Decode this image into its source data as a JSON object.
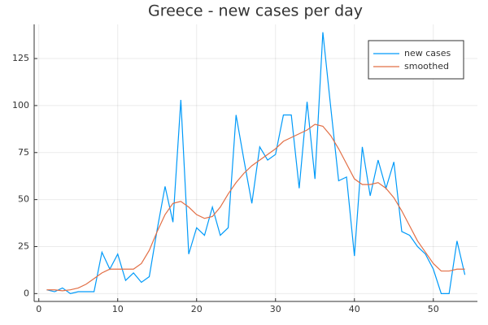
{
  "chart_data": {
    "type": "line",
    "title": "Greece - new cases per day",
    "x": [
      1,
      2,
      3,
      4,
      5,
      6,
      7,
      8,
      9,
      10,
      11,
      12,
      13,
      14,
      15,
      16,
      17,
      18,
      19,
      20,
      21,
      22,
      23,
      24,
      25,
      26,
      27,
      28,
      29,
      30,
      31,
      32,
      33,
      34,
      35,
      36,
      37,
      38,
      39,
      40,
      41,
      42,
      43,
      44,
      45,
      46,
      47,
      48,
      49,
      50,
      51,
      52,
      53,
      54
    ],
    "series": [
      {
        "name": "new cases",
        "color": "#009af9",
        "values": [
          2,
          1,
          3,
          0,
          1,
          1,
          1,
          22,
          13,
          21,
          7,
          11,
          6,
          9,
          34,
          57,
          38,
          103,
          21,
          35,
          31,
          46,
          31,
          35,
          95,
          71,
          48,
          78,
          71,
          74,
          95,
          95,
          56,
          102,
          61,
          139,
          99,
          60,
          62,
          20,
          78,
          52,
          71,
          56,
          70,
          33,
          31,
          25,
          21,
          13,
          0,
          0,
          28,
          10
        ]
      },
      {
        "name": "smoothed",
        "color": "#e26f46",
        "values": [
          2,
          2,
          1.5,
          2,
          3,
          5,
          8,
          11,
          13,
          13,
          13,
          13,
          16,
          23,
          33,
          42,
          48,
          49,
          46,
          42,
          40,
          41,
          46,
          53,
          59,
          64,
          68,
          71,
          74,
          77,
          81,
          83,
          85,
          87,
          90,
          89,
          84,
          77,
          69,
          61,
          58,
          58,
          59,
          56,
          51,
          44,
          36,
          28,
          22,
          16,
          12,
          12,
          13,
          13
        ]
      }
    ],
    "xlim": [
      -0.59,
      55.59
    ],
    "ylim": [
      -4.17,
      143.17
    ],
    "xticks": [
      0,
      10,
      20,
      30,
      40,
      50
    ],
    "yticks": [
      0,
      25,
      50,
      75,
      100,
      125
    ],
    "grid": true,
    "legend": "top-right"
  }
}
